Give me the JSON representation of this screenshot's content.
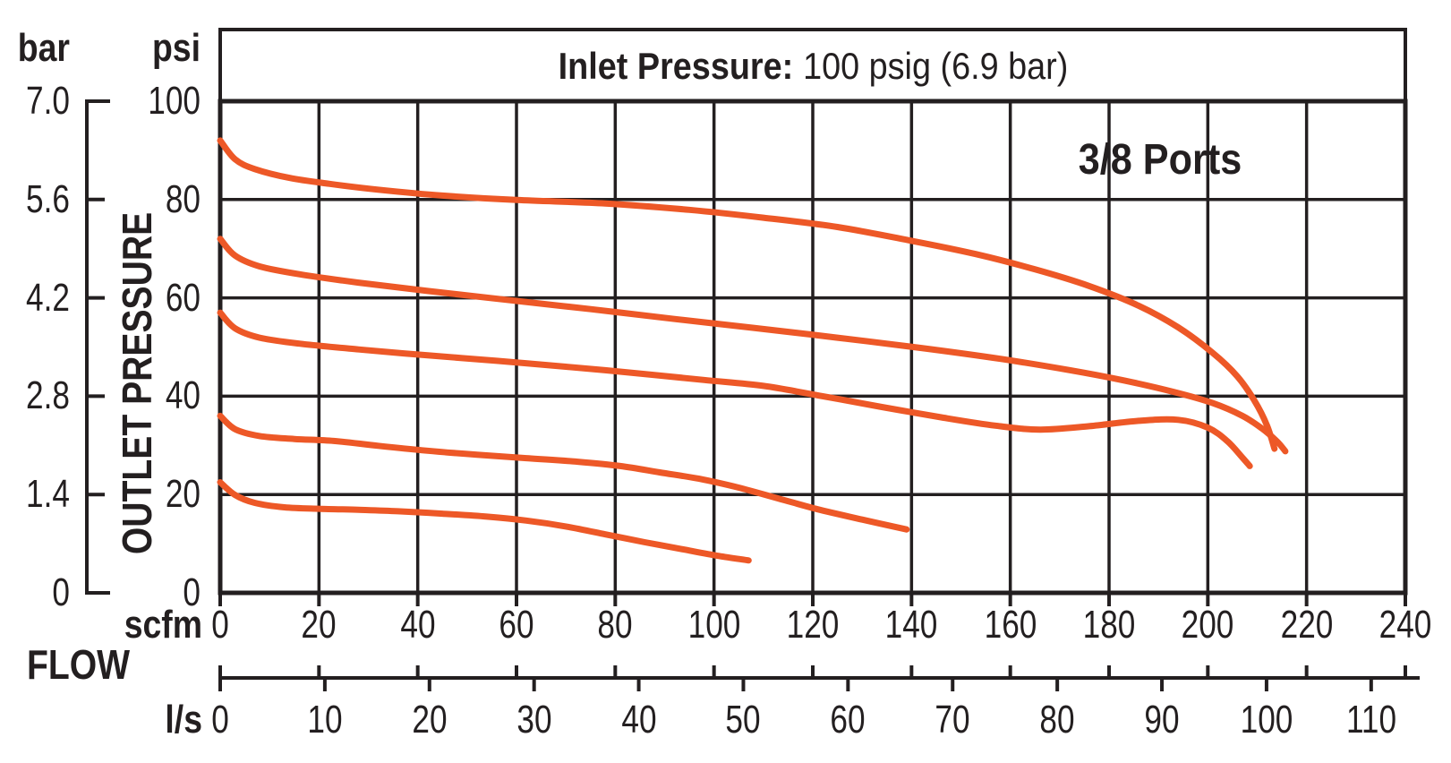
{
  "chart_data": {
    "type": "line",
    "title_bold": "Inlet Pressure:",
    "title_rest": "100 psig (6.9 bar)",
    "annotation": "3/8 Ports",
    "y_axis": {
      "label": "OUTLET PRESSURE",
      "units_left": "bar",
      "units_right": "psi",
      "bar_ticks": [
        "7.0",
        "5.6",
        "4.2",
        "2.8",
        "1.4",
        "0"
      ],
      "psi_ticks": [
        100,
        80,
        60,
        40,
        20,
        0
      ],
      "psi_range": [
        0,
        100
      ],
      "bar_range": [
        0,
        7
      ],
      "grid": true
    },
    "x_axis": {
      "label": "FLOW",
      "units_top": "scfm",
      "units_bottom": "l/s",
      "scfm_ticks": [
        0,
        20,
        40,
        60,
        80,
        100,
        120,
        140,
        160,
        180,
        200,
        220,
        240
      ],
      "ls_ticks": [
        0,
        10,
        20,
        30,
        40,
        50,
        60,
        70,
        80,
        90,
        100,
        110
      ],
      "scfm_range": [
        0,
        240
      ],
      "ls_range": [
        0,
        110
      ],
      "scfm_per_ls": 2.1189
    },
    "styles": {
      "curve_color": "#ED5827",
      "ink_color": "#231F20",
      "background": "#FFFFFF"
    },
    "series": [
      {
        "name": "setting ~92 psi at zero flow",
        "points_scfm_psi": [
          [
            0,
            92
          ],
          [
            3,
            88.2
          ],
          [
            7,
            86.2
          ],
          [
            14,
            84.4
          ],
          [
            22,
            83.2
          ],
          [
            32,
            82
          ],
          [
            45,
            80.8
          ],
          [
            60,
            79.9
          ],
          [
            78,
            79.2
          ],
          [
            95,
            77.9
          ],
          [
            110,
            76.3
          ],
          [
            125,
            74.4
          ],
          [
            140,
            71.6
          ],
          [
            153,
            68.9
          ],
          [
            165,
            65.8
          ],
          [
            176,
            62.4
          ],
          [
            186,
            58.4
          ],
          [
            194,
            54
          ],
          [
            201,
            48.8
          ],
          [
            206,
            44
          ],
          [
            209.5,
            39
          ],
          [
            212,
            34
          ],
          [
            213.5,
            29.3
          ]
        ]
      },
      {
        "name": "setting ~72 psi at zero flow",
        "points_scfm_psi": [
          [
            0,
            72
          ],
          [
            3,
            68.6
          ],
          [
            8,
            66.4
          ],
          [
            16,
            64.8
          ],
          [
            28,
            63.1
          ],
          [
            42,
            61.4
          ],
          [
            58,
            59.6
          ],
          [
            75,
            57.7
          ],
          [
            92,
            55.7
          ],
          [
            108,
            53.9
          ],
          [
            125,
            51.9
          ],
          [
            142,
            49.8
          ],
          [
            158,
            47.6
          ],
          [
            172,
            45.3
          ],
          [
            183,
            43.2
          ],
          [
            193,
            40.9
          ],
          [
            201,
            38.6
          ],
          [
            207,
            36
          ],
          [
            211,
            33.4
          ],
          [
            214,
            30.8
          ],
          [
            215.7,
            28.8
          ]
        ]
      },
      {
        "name": "setting ~57 psi at zero flow",
        "points_scfm_psi": [
          [
            0,
            57
          ],
          [
            3,
            53.8
          ],
          [
            8,
            51.9
          ],
          [
            16,
            50.7
          ],
          [
            28,
            49.5
          ],
          [
            42,
            48.3
          ],
          [
            56,
            47.2
          ],
          [
            70,
            46
          ],
          [
            84,
            44.7
          ],
          [
            98,
            43.3
          ],
          [
            110,
            42.1
          ],
          [
            122,
            40
          ],
          [
            134,
            37.8
          ],
          [
            146,
            35.7
          ],
          [
            157,
            34
          ],
          [
            166,
            33.2
          ],
          [
            176,
            33.9
          ],
          [
            186,
            35
          ],
          [
            194,
            35.2
          ],
          [
            200,
            33.6
          ],
          [
            204,
            30.8
          ],
          [
            207,
            27.5
          ],
          [
            208.5,
            25.8
          ]
        ]
      },
      {
        "name": "setting ~36 psi at zero flow",
        "points_scfm_psi": [
          [
            0,
            36
          ],
          [
            3,
            33.3
          ],
          [
            8,
            31.9
          ],
          [
            15,
            31.3
          ],
          [
            23,
            30.9
          ],
          [
            32,
            29.9
          ],
          [
            42,
            28.9
          ],
          [
            52,
            28.1
          ],
          [
            62,
            27.4
          ],
          [
            72,
            26.7
          ],
          [
            81,
            25.8
          ],
          [
            89,
            24.5
          ],
          [
            97,
            23.2
          ],
          [
            105,
            21.4
          ],
          [
            113,
            19.2
          ],
          [
            121,
            17
          ],
          [
            130,
            14.9
          ],
          [
            139,
            12.9
          ]
        ]
      },
      {
        "name": "setting ~22 psi at zero flow",
        "points_scfm_psi": [
          [
            0,
            22.5
          ],
          [
            3,
            19.9
          ],
          [
            7,
            18.3
          ],
          [
            13,
            17.4
          ],
          [
            20,
            17.1
          ],
          [
            28,
            16.9
          ],
          [
            36,
            16.6
          ],
          [
            45,
            16.1
          ],
          [
            54,
            15.5
          ],
          [
            62,
            14.7
          ],
          [
            70,
            13.5
          ],
          [
            78,
            11.9
          ],
          [
            86,
            10.3
          ],
          [
            94,
            8.8
          ],
          [
            101,
            7.5
          ],
          [
            107,
            6.6
          ]
        ]
      }
    ]
  }
}
